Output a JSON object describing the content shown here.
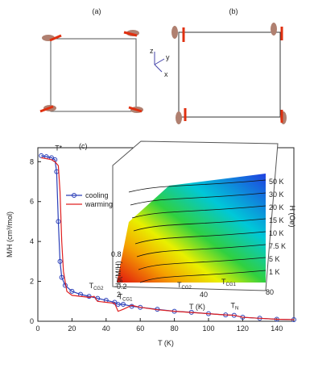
{
  "panel_a": "(a)",
  "panel_b": "(b)",
  "axes_labels": {
    "z": "z",
    "y": "y",
    "x": "x"
  },
  "chart_data": {
    "type": "line",
    "panel": "(c)",
    "xlabel": "T (K)",
    "ylabel": "M/H (cm³/mol)",
    "xlim": [
      0,
      150
    ],
    "xticks": [
      0,
      20,
      40,
      60,
      80,
      100,
      120,
      140
    ],
    "ylim": [
      0,
      8.7
    ],
    "yticks": [
      0,
      2,
      4,
      6,
      8
    ],
    "series": [
      {
        "name": "cooling",
        "color": "#2b3fb8",
        "marker": "circle",
        "x": [
          2,
          5,
          8,
          10,
          11,
          12,
          13,
          14,
          16,
          20,
          25,
          30,
          35,
          40,
          45,
          47,
          50,
          55,
          60,
          70,
          80,
          90,
          100,
          110,
          115,
          120,
          130,
          140,
          150
        ],
        "values": [
          8.3,
          8.25,
          8.2,
          8.1,
          7.5,
          5.0,
          3.0,
          2.2,
          1.8,
          1.5,
          1.35,
          1.25,
          1.15,
          1.05,
          0.95,
          0.85,
          0.85,
          0.75,
          0.7,
          0.6,
          0.5,
          0.45,
          0.38,
          0.32,
          0.3,
          0.2,
          0.15,
          0.1,
          0.08
        ]
      },
      {
        "name": "warming",
        "color": "#e02020",
        "marker": "none",
        "x": [
          2,
          5,
          8,
          10,
          12,
          13,
          14,
          15,
          17,
          20,
          25,
          30,
          33,
          35,
          40,
          45,
          47,
          50,
          55,
          60,
          70,
          80,
          90,
          100,
          110,
          115,
          120,
          130,
          140,
          150
        ],
        "values": [
          8.2,
          8.15,
          8.1,
          8.0,
          7.8,
          6.5,
          4.0,
          2.5,
          1.5,
          1.3,
          1.25,
          1.2,
          1.25,
          1.0,
          0.95,
          0.9,
          0.5,
          0.6,
          0.8,
          0.7,
          0.58,
          0.5,
          0.44,
          0.38,
          0.32,
          0.3,
          0.2,
          0.15,
          0.1,
          0.08
        ]
      }
    ],
    "annotations": [
      {
        "text": "T*",
        "x": 10,
        "y": 8.4
      },
      {
        "text": "T",
        "sub": "CG2",
        "x": 30,
        "y": 1.5
      },
      {
        "text": "T",
        "sub": "CG1",
        "x": 47,
        "y": 0.95
      },
      {
        "text": "T",
        "sub": "N",
        "x": 113,
        "y": 0.5
      }
    ],
    "legend": "upper-left"
  },
  "inset": {
    "field_labels": [
      "50 K",
      "30 K",
      "20 K",
      "15 K",
      "10 K",
      "7.5 K",
      "5 K",
      "1 K"
    ],
    "field_axis": "H (Oe)",
    "zlabel": "lg(M/H)",
    "zticks": [
      "0.8",
      "-0.2"
    ],
    "xticks": [
      "2",
      "40",
      "80"
    ],
    "xlabel": "T (K)",
    "marks": [
      {
        "text": "T",
        "sub": "CG2"
      },
      {
        "text": "T",
        "sub": "CG1"
      }
    ]
  }
}
